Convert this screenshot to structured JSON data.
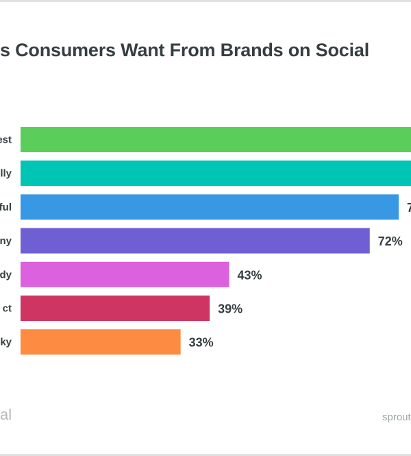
{
  "chart_data": {
    "type": "bar",
    "orientation": "horizontal",
    "title": "s Consumers Want From Brands on Social",
    "categories": [
      "est",
      "lly",
      "ful",
      "ny",
      "dy",
      "ct",
      "ky"
    ],
    "values": [
      null,
      null,
      null,
      72,
      43,
      39,
      33
    ],
    "value_labels": [
      "",
      "",
      "7",
      "72%",
      "43%",
      "39%",
      "33%"
    ],
    "colors": [
      "#5acd5b",
      "#00c4b4",
      "#3898e3",
      "#6e5fd3",
      "#dc61de",
      "#ce3562",
      "#fd8b41"
    ],
    "xlim": [
      0,
      100
    ],
    "grid": false,
    "legend": "none"
  },
  "footer": {
    "left_text": "al",
    "right_text": "sprout"
  }
}
